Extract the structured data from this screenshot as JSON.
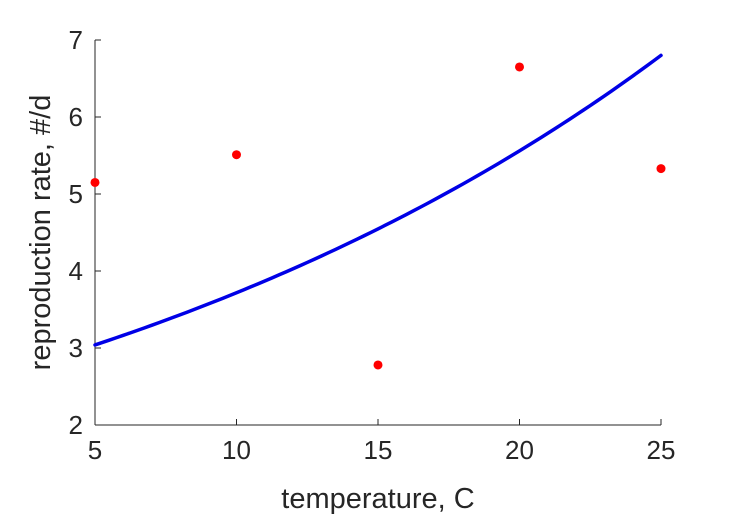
{
  "chart_data": {
    "type": "scatter",
    "title": "",
    "xlabel": "temperature, C",
    "ylabel": "reproduction rate, #/d",
    "xlim": [
      5,
      25
    ],
    "ylim": [
      2,
      7
    ],
    "xticks": [
      5,
      10,
      15,
      20,
      25
    ],
    "yticks": [
      2,
      3,
      4,
      5,
      6,
      7
    ],
    "grid": false,
    "legend": "none",
    "series": [
      {
        "kind": "points",
        "color": "#ff0000",
        "x": [
          5,
          10,
          15,
          20,
          25
        ],
        "y": [
          5.15,
          5.51,
          2.78,
          6.65,
          5.33
        ]
      },
      {
        "kind": "fit-curve",
        "color": "#0000e6",
        "x": [
          5,
          10,
          15,
          20,
          25
        ],
        "y": [
          3.04,
          3.74,
          4.6,
          5.6,
          6.8
        ]
      }
    ]
  }
}
